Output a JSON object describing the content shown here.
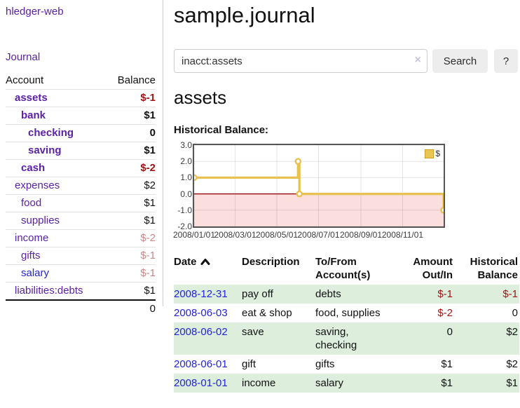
{
  "app": {
    "title": "hledger-web"
  },
  "sidebar": {
    "journal_link": "Journal",
    "headers": {
      "account": "Account",
      "balance": "Balance"
    },
    "accounts": [
      {
        "name": "assets",
        "balance": "$-1",
        "level": 0,
        "bold": true,
        "balance_style": "neg-strong",
        "link": "purple"
      },
      {
        "name": "bank",
        "balance": "$1",
        "level": 1,
        "bold": true,
        "balance_style": "",
        "link": "purple"
      },
      {
        "name": "checking",
        "balance": "0",
        "level": 2,
        "bold": true,
        "balance_style": "",
        "link": "purple"
      },
      {
        "name": "saving",
        "balance": "$1",
        "level": 2,
        "bold": true,
        "balance_style": "",
        "link": "purple"
      },
      {
        "name": "cash",
        "balance": "$-2",
        "level": 1,
        "bold": true,
        "balance_style": "neg-strong",
        "link": "purple"
      },
      {
        "name": "expenses",
        "balance": "$2",
        "level": 0,
        "bold": false,
        "balance_style": "",
        "link": "purple"
      },
      {
        "name": "food",
        "balance": "$1",
        "level": 1,
        "bold": false,
        "balance_style": "",
        "link": "purple"
      },
      {
        "name": "supplies",
        "balance": "$1",
        "level": 1,
        "bold": false,
        "balance_style": "",
        "link": "purple"
      },
      {
        "name": "income",
        "balance": "$-2",
        "level": 0,
        "bold": false,
        "balance_style": "neg-faded",
        "link": "purple"
      },
      {
        "name": "gifts",
        "balance": "$-1",
        "level": 1,
        "bold": false,
        "balance_style": "neg-faded",
        "link": "purple"
      },
      {
        "name": "salary",
        "balance": "$-1",
        "level": 1,
        "bold": false,
        "balance_style": "neg-faded",
        "link": "blue"
      },
      {
        "name": "liabilities:debts",
        "balance": "$1",
        "level": 0,
        "bold": false,
        "balance_style": "",
        "link": "purple"
      }
    ],
    "total": "0"
  },
  "header": {
    "title": "sample.journal"
  },
  "search": {
    "value": "inacct:assets",
    "clear_icon": "×",
    "search_button": "Search",
    "help_button": "?"
  },
  "account_page": {
    "title": "assets",
    "chart_label": "Historical Balance:"
  },
  "chart_data": {
    "type": "line",
    "style": "step-with-markers",
    "title": "Historical Balance:",
    "series": [
      {
        "name": "$",
        "color": "#e8c150",
        "points": [
          {
            "date": "2008-01-01",
            "value": 1
          },
          {
            "date": "2008-06-01",
            "value": 2
          },
          {
            "date": "2008-06-03",
            "value": 0
          },
          {
            "date": "2008-12-31",
            "value": -1
          }
        ]
      }
    ],
    "x_range": [
      "2008-01-01",
      "2008-12-31"
    ],
    "x_ticks": [
      "2008/01/01",
      "2008/03/01",
      "2008/05/01",
      "2008/07/01",
      "2008/09/01",
      "2008/11/01"
    ],
    "y_ticks": [
      "3.0",
      "2.0",
      "1.0",
      "0.0",
      "-1.0",
      "-2.0"
    ],
    "ylim": [
      -2,
      3
    ],
    "grid": true,
    "legend": {
      "label": "$",
      "position": "top-right"
    },
    "negative_region_color": "#fbdede",
    "zero_line_color": "#990000"
  },
  "register": {
    "headers": {
      "date": "Date",
      "description": "Description",
      "accounts": "To/From Account(s)",
      "amount": "Amount Out/In",
      "balance": "Historical Balance"
    },
    "sort": {
      "column": "date",
      "direction": "ascending"
    },
    "rows": [
      {
        "date": "2008-12-31",
        "description": "pay off",
        "accounts": "debts",
        "amount": "$-1",
        "balance": "$-1",
        "amount_style": "neg-strong",
        "balance_style": "neg-strong",
        "shaded": true
      },
      {
        "date": "2008-06-03",
        "description": "eat & shop",
        "accounts": "food, supplies",
        "amount": "$-2",
        "balance": "0",
        "amount_style": "neg-strong",
        "balance_style": "",
        "shaded": false
      },
      {
        "date": "2008-06-02",
        "description": "save",
        "accounts": "saving, checking",
        "amount": "0",
        "balance": "$2",
        "amount_style": "",
        "balance_style": "",
        "shaded": true
      },
      {
        "date": "2008-06-01",
        "description": "gift",
        "accounts": "gifts",
        "amount": "$1",
        "balance": "$2",
        "amount_style": "",
        "balance_style": "",
        "shaded": false
      },
      {
        "date": "2008-01-01",
        "description": "income",
        "accounts": "salary",
        "amount": "$1",
        "balance": "$1",
        "amount_style": "",
        "balance_style": "",
        "shaded": true
      }
    ]
  }
}
